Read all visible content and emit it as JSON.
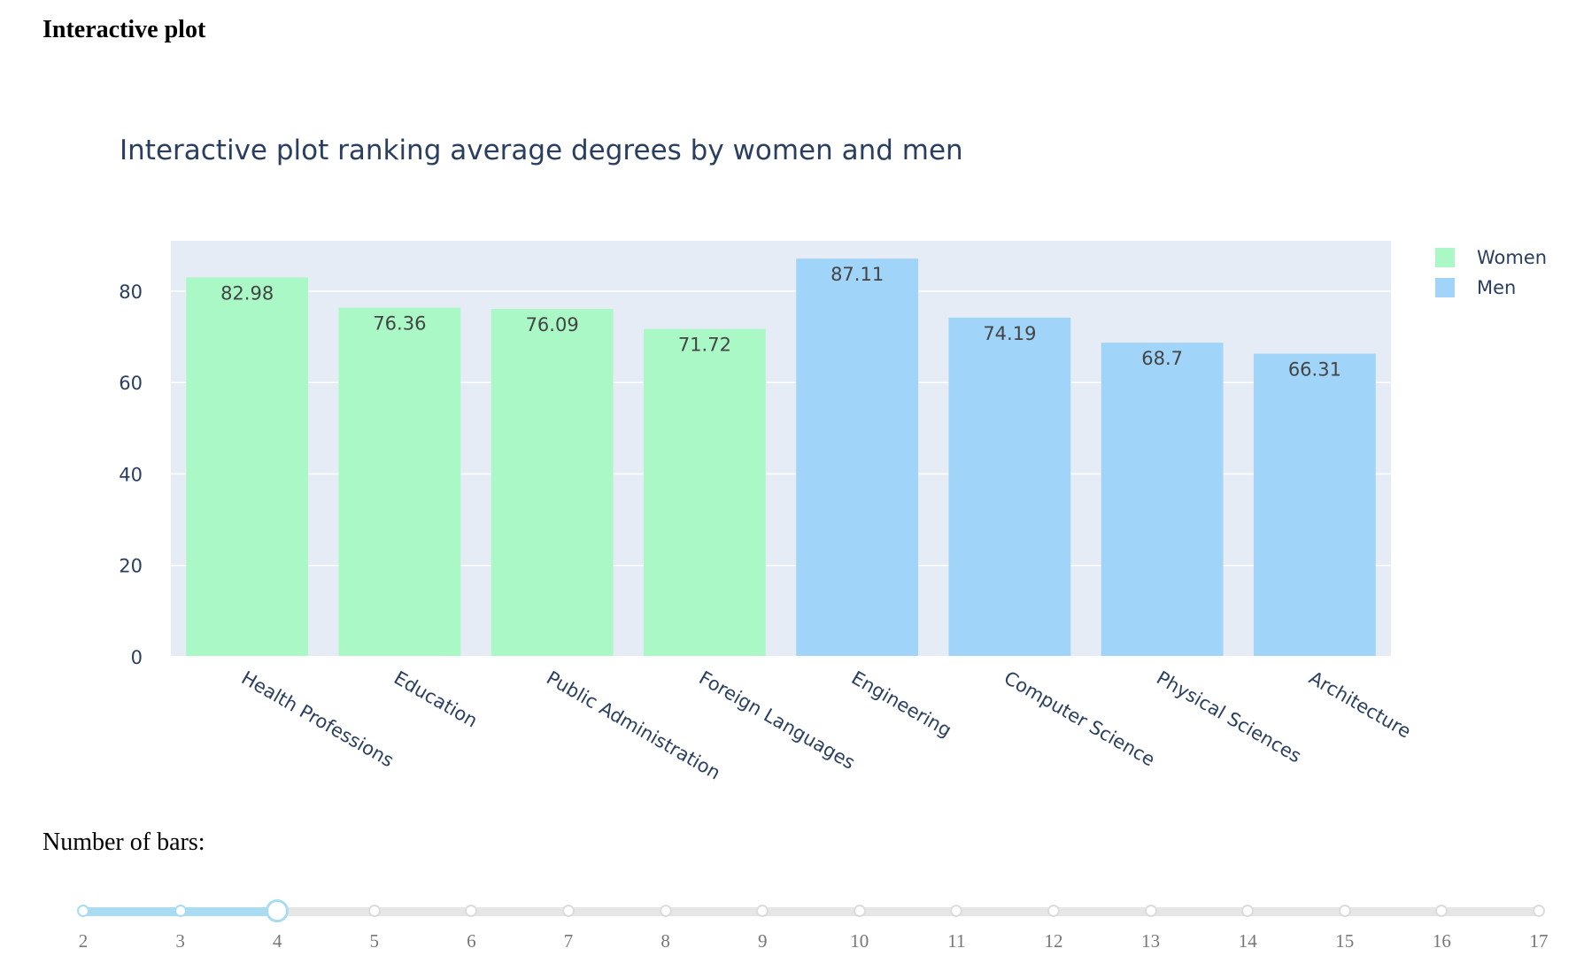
{
  "page": {
    "heading": "Interactive plot",
    "slider_label": "Number of bars:"
  },
  "slider": {
    "min": 2,
    "max": 17,
    "value": 4,
    "ticks": [
      "2",
      "3",
      "4",
      "5",
      "6",
      "7",
      "8",
      "9",
      "10",
      "11",
      "12",
      "13",
      "14",
      "15",
      "16",
      "17"
    ]
  },
  "chart_data": {
    "type": "bar",
    "title": "Interactive plot ranking average degrees by women and men",
    "xlabel": "",
    "ylabel": "",
    "ylim": [
      0,
      91
    ],
    "yticks": [
      0,
      20,
      40,
      60,
      80
    ],
    "grid": true,
    "legend_position": "top-right",
    "colors": {
      "Women": "#aaf8c6",
      "Men": "#a0d5f9",
      "plot_bg": "#e5ecf6",
      "text": "#2a3f5f"
    },
    "series": [
      {
        "name": "Women",
        "categories": [
          "Health Professions",
          "Education",
          "Public Administration",
          "Foreign Languages"
        ],
        "values": [
          82.98,
          76.36,
          76.09,
          71.72
        ],
        "labels": [
          "82.98",
          "76.36",
          "76.09",
          "71.72"
        ]
      },
      {
        "name": "Men",
        "categories": [
          "Engineering",
          "Computer Science",
          "Physical Sciences",
          "Architecture"
        ],
        "values": [
          87.11,
          74.19,
          68.7,
          66.31
        ],
        "labels": [
          "87.11",
          "74.19",
          "68.7",
          "66.31"
        ]
      }
    ]
  }
}
